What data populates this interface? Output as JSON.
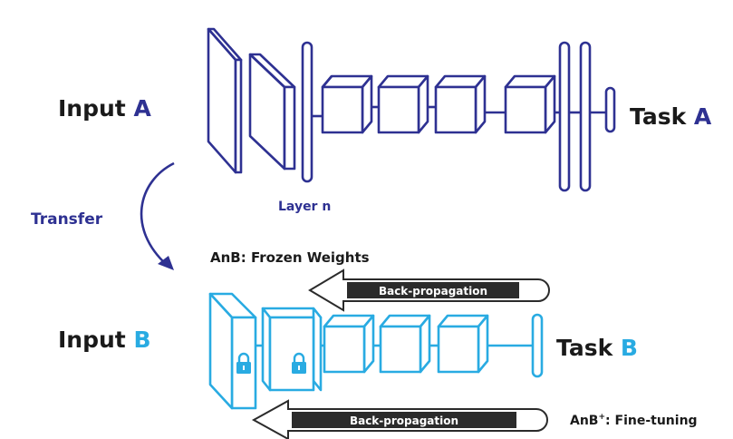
{
  "colors": {
    "network_a": "#2e3192",
    "network_b": "#29abe2",
    "text_dark": "#1a1a1a",
    "arrow_dark": "#2b2b2b",
    "label_transfer": "#2e3192"
  },
  "network_a": {
    "input_label": "Input ",
    "input_letter": "A",
    "task_label": "Task ",
    "task_letter": "A",
    "layer_label": "Layer n"
  },
  "transfer": {
    "label": "Transfer"
  },
  "network_b": {
    "input_label": "Input ",
    "input_letter": "B",
    "task_label": "Task ",
    "task_letter": "B",
    "frozen_label": "AnB: Frozen Weights",
    "backprop_top": "Back-propagation",
    "backprop_bottom": "Back-propagation",
    "finetune_label_pre": "AnB",
    "finetune_sup": "+",
    "finetune_label_post": ": Fine-tuning"
  },
  "icons": {
    "lock": "lock-icon",
    "arrow": "curved-arrow-icon"
  }
}
